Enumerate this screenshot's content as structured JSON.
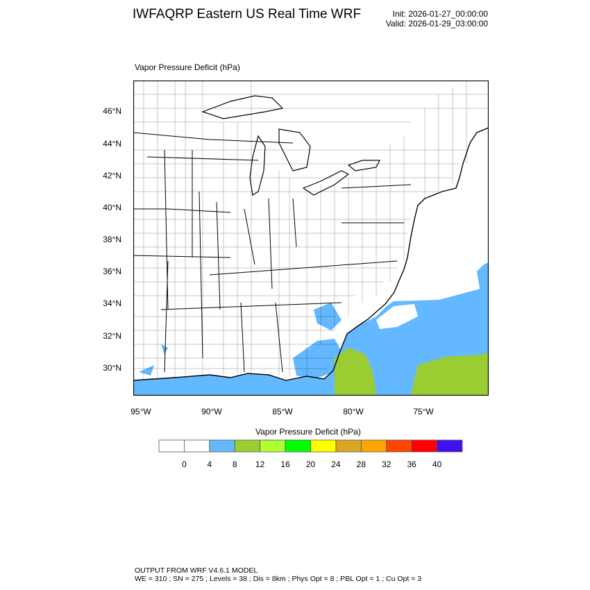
{
  "header": {
    "title": "IWFAQRP Eastern US Real Time WRF",
    "init": "Init: 2026-01-27_00:00:00",
    "valid": "Valid: 2026-01-29_03:00:00"
  },
  "map": {
    "field_label": "Vapor Pressure Deficit   (hPa)",
    "lat_labels": [
      "46°N",
      "44°N",
      "42°N",
      "40°N",
      "38°N",
      "36°N",
      "34°N",
      "32°N",
      "30°N"
    ],
    "lon_labels": [
      "95°W",
      "90°W",
      "85°W",
      "80°W",
      "75°W"
    ],
    "colors": {
      "land_blue": "#63B8FF",
      "green": "#9ACD32",
      "outline": "#000000"
    }
  },
  "colorbar": {
    "title": "Vapor Pressure Deficit  (hPa)",
    "colors": [
      "#FFFFFF",
      "#FFFFFF",
      "#63B8FF",
      "#9ACD32",
      "#ADFF2F",
      "#00FF00",
      "#FFFF00",
      "#DAA520",
      "#FFA500",
      "#FF4500",
      "#FF0000",
      "#4010F0"
    ],
    "labels": [
      "0",
      "4",
      "8",
      "12",
      "16",
      "20",
      "24",
      "28",
      "32",
      "36",
      "40"
    ]
  },
  "footer": {
    "line1": "OUTPUT FROM WRF V4.6.1 MODEL",
    "line2": "WE = 310 ; SN = 275 ; Levels = 38 ; Dis = 8km ; Phys Opt = 8 ; PBL Opt = 1 ; Cu Opt = 3"
  }
}
